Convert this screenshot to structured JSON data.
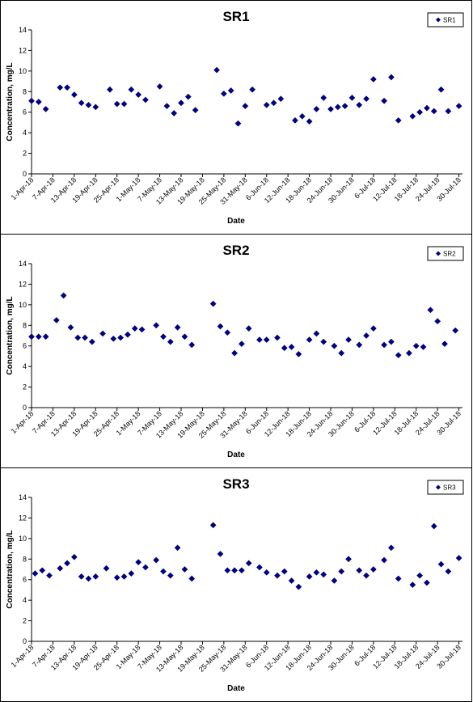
{
  "chart_data": [
    {
      "type": "scatter",
      "title": "SR1",
      "xlabel": "Date",
      "ylabel": "Concentration, mg/L",
      "ylim": [
        0,
        14
      ],
      "yticks": [
        0,
        2,
        4,
        6,
        8,
        10,
        12,
        14
      ],
      "xlim": [
        "2018-04-01",
        "2018-07-31"
      ],
      "xticks": [
        "1-Apr-18",
        "7-Apr-18",
        "13-Apr-18",
        "19-Apr-18",
        "25-Apr-18",
        "1-May-18",
        "7-May-18",
        "13-May-18",
        "19-May-18",
        "25-May-18",
        "31-May-18",
        "6-Jun-18",
        "12-Jun-18",
        "18-Jun-18",
        "24-Jun-18",
        "30-Jun-18",
        "6-Jul-18",
        "12-Jul-18",
        "18-Jul-18",
        "24-Jul-18",
        "30-Jul-18"
      ],
      "grid": false,
      "legend": "top-right",
      "color": "#000080",
      "series": [
        {
          "name": "SR1",
          "marker": "diamond",
          "points": [
            [
              "2018-04-01",
              7.1
            ],
            [
              "2018-04-03",
              7.0
            ],
            [
              "2018-04-05",
              6.3
            ],
            [
              "2018-04-09",
              8.4
            ],
            [
              "2018-04-11",
              8.4
            ],
            [
              "2018-04-13",
              7.7
            ],
            [
              "2018-04-15",
              6.9
            ],
            [
              "2018-04-17",
              6.7
            ],
            [
              "2018-04-19",
              6.5
            ],
            [
              "2018-04-23",
              8.2
            ],
            [
              "2018-04-25",
              6.8
            ],
            [
              "2018-04-27",
              6.8
            ],
            [
              "2018-04-29",
              8.2
            ],
            [
              "2018-05-01",
              7.7
            ],
            [
              "2018-05-03",
              7.2
            ],
            [
              "2018-05-07",
              8.5
            ],
            [
              "2018-05-09",
              6.6
            ],
            [
              "2018-05-11",
              5.9
            ],
            [
              "2018-05-13",
              6.9
            ],
            [
              "2018-05-15",
              7.5
            ],
            [
              "2018-05-17",
              6.2
            ],
            [
              "2018-05-23",
              10.1
            ],
            [
              "2018-05-25",
              7.8
            ],
            [
              "2018-05-27",
              8.1
            ],
            [
              "2018-05-29",
              4.9
            ],
            [
              "2018-05-31",
              6.6
            ],
            [
              "2018-06-02",
              8.2
            ],
            [
              "2018-06-06",
              6.7
            ],
            [
              "2018-06-08",
              6.9
            ],
            [
              "2018-06-10",
              7.3
            ],
            [
              "2018-06-14",
              5.2
            ],
            [
              "2018-06-16",
              5.6
            ],
            [
              "2018-06-18",
              5.1
            ],
            [
              "2018-06-20",
              6.3
            ],
            [
              "2018-06-22",
              7.4
            ],
            [
              "2018-06-24",
              6.3
            ],
            [
              "2018-06-26",
              6.5
            ],
            [
              "2018-06-28",
              6.6
            ],
            [
              "2018-06-30",
              7.4
            ],
            [
              "2018-07-02",
              6.7
            ],
            [
              "2018-07-04",
              7.3
            ],
            [
              "2018-07-06",
              9.2
            ],
            [
              "2018-07-09",
              7.1
            ],
            [
              "2018-07-11",
              9.4
            ],
            [
              "2018-07-13",
              5.2
            ],
            [
              "2018-07-17",
              5.6
            ],
            [
              "2018-07-19",
              6.0
            ],
            [
              "2018-07-21",
              6.4
            ],
            [
              "2018-07-23",
              6.1
            ],
            [
              "2018-07-25",
              8.2
            ],
            [
              "2018-07-27",
              6.1
            ],
            [
              "2018-07-30",
              6.6
            ]
          ]
        }
      ]
    },
    {
      "type": "scatter",
      "title": "SR2",
      "xlabel": "Date",
      "ylabel": "Concentration, mg/L",
      "ylim": [
        0,
        14
      ],
      "yticks": [
        0,
        2,
        4,
        6,
        8,
        10,
        12,
        14
      ],
      "xlim": [
        "2018-04-01",
        "2018-07-31"
      ],
      "xticks": [
        "1-Apr-18",
        "7-Apr-18",
        "13-Apr-18",
        "19-Apr-18",
        "25-Apr-18",
        "1-May-18",
        "7-May-18",
        "13-May-18",
        "19-May-18",
        "25-May-18",
        "31-May-18",
        "6-Jun-18",
        "12-Jun-18",
        "18-Jun-18",
        "24-Jun-18",
        "30-Jun-18",
        "6-Jul-18",
        "12-Jul-18",
        "18-Jul-18",
        "24-Jul-18",
        "30-Jul-18"
      ],
      "grid": false,
      "legend": "top-right",
      "color": "#000080",
      "series": [
        {
          "name": "SR2",
          "marker": "diamond",
          "points": [
            [
              "2018-04-01",
              6.9
            ],
            [
              "2018-04-03",
              6.9
            ],
            [
              "2018-04-05",
              6.9
            ],
            [
              "2018-04-08",
              8.5
            ],
            [
              "2018-04-10",
              10.9
            ],
            [
              "2018-04-12",
              7.8
            ],
            [
              "2018-04-14",
              6.8
            ],
            [
              "2018-04-16",
              6.8
            ],
            [
              "2018-04-18",
              6.4
            ],
            [
              "2018-04-21",
              7.2
            ],
            [
              "2018-04-24",
              6.7
            ],
            [
              "2018-04-26",
              6.8
            ],
            [
              "2018-04-28",
              7.1
            ],
            [
              "2018-04-30",
              7.7
            ],
            [
              "2018-05-02",
              7.6
            ],
            [
              "2018-05-06",
              8.0
            ],
            [
              "2018-05-08",
              6.9
            ],
            [
              "2018-05-10",
              6.4
            ],
            [
              "2018-05-12",
              7.8
            ],
            [
              "2018-05-14",
              6.9
            ],
            [
              "2018-05-16",
              6.1
            ],
            [
              "2018-05-22",
              10.1
            ],
            [
              "2018-05-24",
              7.9
            ],
            [
              "2018-05-26",
              7.3
            ],
            [
              "2018-05-28",
              5.3
            ],
            [
              "2018-05-30",
              6.2
            ],
            [
              "2018-06-01",
              7.7
            ],
            [
              "2018-06-04",
              6.6
            ],
            [
              "2018-06-06",
              6.6
            ],
            [
              "2018-06-09",
              6.8
            ],
            [
              "2018-06-11",
              5.8
            ],
            [
              "2018-06-13",
              5.9
            ],
            [
              "2018-06-15",
              5.2
            ],
            [
              "2018-06-18",
              6.6
            ],
            [
              "2018-06-20",
              7.2
            ],
            [
              "2018-06-22",
              6.4
            ],
            [
              "2018-06-25",
              6.0
            ],
            [
              "2018-06-27",
              5.3
            ],
            [
              "2018-06-29",
              6.6
            ],
            [
              "2018-07-02",
              6.1
            ],
            [
              "2018-07-04",
              7.0
            ],
            [
              "2018-07-06",
              7.7
            ],
            [
              "2018-07-09",
              6.1
            ],
            [
              "2018-07-11",
              6.4
            ],
            [
              "2018-07-13",
              5.1
            ],
            [
              "2018-07-16",
              5.3
            ],
            [
              "2018-07-18",
              6.0
            ],
            [
              "2018-07-20",
              5.9
            ],
            [
              "2018-07-22",
              9.5
            ],
            [
              "2018-07-24",
              8.4
            ],
            [
              "2018-07-26",
              6.2
            ],
            [
              "2018-07-29",
              7.5
            ]
          ]
        }
      ]
    },
    {
      "type": "scatter",
      "title": "SR3",
      "xlabel": "Date",
      "ylabel": "Concentration, mg/L",
      "ylim": [
        0,
        14
      ],
      "yticks": [
        0,
        2,
        4,
        6,
        8,
        10,
        12,
        14
      ],
      "xlim": [
        "2018-04-01",
        "2018-07-31"
      ],
      "xticks": [
        "1-Apr-18",
        "7-Apr-18",
        "13-Apr-18",
        "19-Apr-18",
        "25-Apr-18",
        "1-May-18",
        "7-May-18",
        "13-May-18",
        "19-May-18",
        "25-May-18",
        "31-May-18",
        "6-Jun-18",
        "12-Jun-18",
        "18-Jun-18",
        "24-Jun-18",
        "30-Jun-18",
        "6-Jul-18",
        "12-Jul-18",
        "18-Jul-18",
        "24-Jul-18",
        "30-Jul-18"
      ],
      "grid": false,
      "legend": "top-right",
      "color": "#000080",
      "series": [
        {
          "name": "SR3",
          "marker": "diamond",
          "points": [
            [
              "2018-04-02",
              6.6
            ],
            [
              "2018-04-04",
              6.9
            ],
            [
              "2018-04-06",
              6.4
            ],
            [
              "2018-04-09",
              7.1
            ],
            [
              "2018-04-11",
              7.6
            ],
            [
              "2018-04-13",
              8.2
            ],
            [
              "2018-04-15",
              6.3
            ],
            [
              "2018-04-17",
              6.1
            ],
            [
              "2018-04-19",
              6.3
            ],
            [
              "2018-04-22",
              7.1
            ],
            [
              "2018-04-25",
              6.2
            ],
            [
              "2018-04-27",
              6.3
            ],
            [
              "2018-04-29",
              6.6
            ],
            [
              "2018-05-01",
              7.7
            ],
            [
              "2018-05-03",
              7.2
            ],
            [
              "2018-05-06",
              7.9
            ],
            [
              "2018-05-08",
              6.8
            ],
            [
              "2018-05-10",
              6.4
            ],
            [
              "2018-05-12",
              9.1
            ],
            [
              "2018-05-14",
              7.0
            ],
            [
              "2018-05-16",
              6.1
            ],
            [
              "2018-05-22",
              11.3
            ],
            [
              "2018-05-24",
              8.5
            ],
            [
              "2018-05-26",
              6.9
            ],
            [
              "2018-05-28",
              6.9
            ],
            [
              "2018-05-30",
              6.9
            ],
            [
              "2018-06-01",
              7.6
            ],
            [
              "2018-06-04",
              7.2
            ],
            [
              "2018-06-06",
              6.7
            ],
            [
              "2018-06-09",
              6.4
            ],
            [
              "2018-06-11",
              6.8
            ],
            [
              "2018-06-13",
              5.9
            ],
            [
              "2018-06-15",
              5.3
            ],
            [
              "2018-06-18",
              6.3
            ],
            [
              "2018-06-20",
              6.7
            ],
            [
              "2018-06-22",
              6.5
            ],
            [
              "2018-06-25",
              5.9
            ],
            [
              "2018-06-27",
              6.8
            ],
            [
              "2018-06-29",
              8.0
            ],
            [
              "2018-07-02",
              6.9
            ],
            [
              "2018-07-04",
              6.4
            ],
            [
              "2018-07-06",
              7.0
            ],
            [
              "2018-07-09",
              7.9
            ],
            [
              "2018-07-11",
              9.1
            ],
            [
              "2018-07-13",
              6.1
            ],
            [
              "2018-07-17",
              5.5
            ],
            [
              "2018-07-19",
              6.4
            ],
            [
              "2018-07-21",
              5.7
            ],
            [
              "2018-07-23",
              11.2
            ],
            [
              "2018-07-25",
              7.5
            ],
            [
              "2018-07-27",
              6.8
            ],
            [
              "2018-07-30",
              8.1
            ]
          ]
        }
      ]
    }
  ]
}
